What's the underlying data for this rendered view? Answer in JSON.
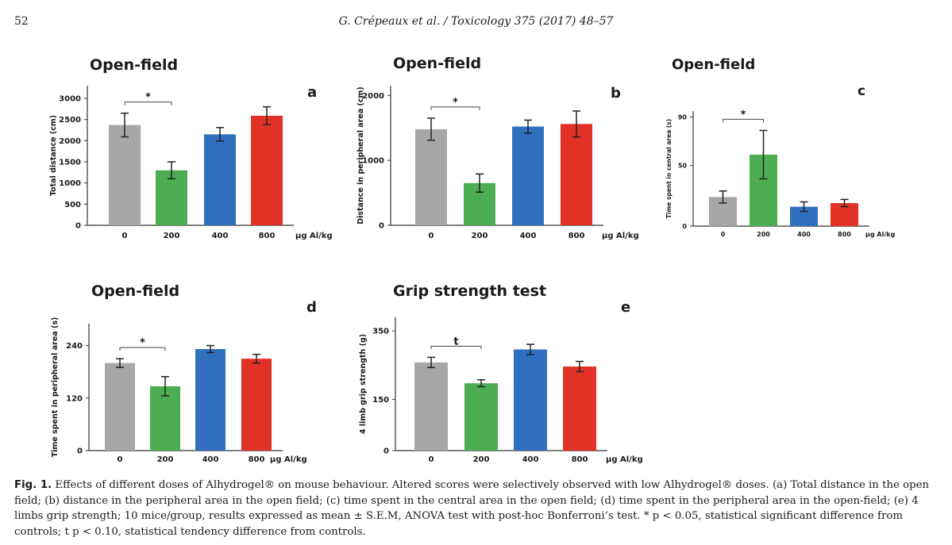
{
  "header": {
    "page_number": "52",
    "running_head": "G. Crépeaux et al. / Toxicology 375 (2017) 48–57"
  },
  "colors": {
    "dose_0": "#a7a7a7",
    "dose_200": "#4cad53",
    "dose_400": "#2f6fbd",
    "dose_800": "#e23227"
  },
  "chart_data": [
    {
      "type": "bar",
      "panel": "a",
      "title": "Open-field",
      "ylabel": "Total distance (cm)",
      "xunit": "µg Al/kg",
      "categories": [
        "0",
        "200",
        "400",
        "800"
      ],
      "values": [
        2370,
        1300,
        2150,
        2590
      ],
      "errors": [
        280,
        200,
        160,
        210
      ],
      "ylim": [
        0,
        3300
      ],
      "yticks": [
        0,
        500,
        1000,
        1500,
        2000,
        2500,
        3000
      ],
      "significance": {
        "from": 0,
        "to": 1,
        "label": "*"
      }
    },
    {
      "type": "bar",
      "panel": "b",
      "title": "Open-field",
      "ylabel": "Distance  in peripheral area (cm)",
      "xunit": "µg Al/kg",
      "categories": [
        "0",
        "200",
        "400",
        "800"
      ],
      "values": [
        1480,
        650,
        1520,
        1560
      ],
      "errors": [
        170,
        140,
        100,
        200
      ],
      "ylim": [
        0,
        2150
      ],
      "yticks": [
        0,
        1000,
        2000
      ],
      "significance": {
        "from": 0,
        "to": 1,
        "label": "*"
      }
    },
    {
      "type": "bar",
      "panel": "c",
      "title": "Open-field",
      "ylabel": "Time spent  in central area (s)",
      "xunit": "µg Al/kg",
      "categories": [
        "0",
        "200",
        "400",
        "800"
      ],
      "values": [
        24,
        59,
        16,
        19
      ],
      "errors": [
        5,
        20,
        4,
        3
      ],
      "ylim": [
        0,
        95
      ],
      "yticks": [
        0,
        50,
        90
      ],
      "significance": {
        "from": 0,
        "to": 1,
        "label": "*"
      }
    },
    {
      "type": "bar",
      "panel": "d",
      "title": "Open-field",
      "ylabel": "Time spent  in peripheral area (s)",
      "xunit": "µg Al/kg",
      "categories": [
        "0",
        "200",
        "400",
        "800"
      ],
      "values": [
        200,
        147,
        232,
        210
      ],
      "errors": [
        10,
        22,
        8,
        10
      ],
      "ylim": [
        0,
        290
      ],
      "yticks": [
        0,
        120,
        240
      ],
      "significance": {
        "from": 0,
        "to": 1,
        "label": "*"
      }
    },
    {
      "type": "bar",
      "panel": "e",
      "title": "Grip strength test",
      "ylabel": "4 limb grip strength (g)",
      "xunit": "µg Al/kg",
      "categories": [
        "0",
        "200",
        "400",
        "800"
      ],
      "values": [
        258,
        197,
        296,
        246
      ],
      "errors": [
        15,
        10,
        15,
        15
      ],
      "ylim": [
        0,
        390
      ],
      "yticks": [
        0,
        150,
        350
      ],
      "significance": {
        "from": 0,
        "to": 1,
        "label": "t"
      }
    }
  ],
  "caption": {
    "label": "Fig. 1.",
    "text": "  Effects of different doses of Alhydrogel® on mouse behaviour. Altered scores were selectively observed with low Alhydrogel® doses. (a) Total distance in the open field; (b) distance in the peripheral area in the open field; (c) time spent in the central area in the open field; (d) time spent in the peripheral area in the open-field; (e) 4 limbs grip strength; 10 mice/group, results expressed as mean ± S.E.M, ANOVA test with post-hoc Bonferroni’s test. * p < 0.05, statistical significant difference from controls; t p < 0.10, statistical tendency difference from controls."
  }
}
